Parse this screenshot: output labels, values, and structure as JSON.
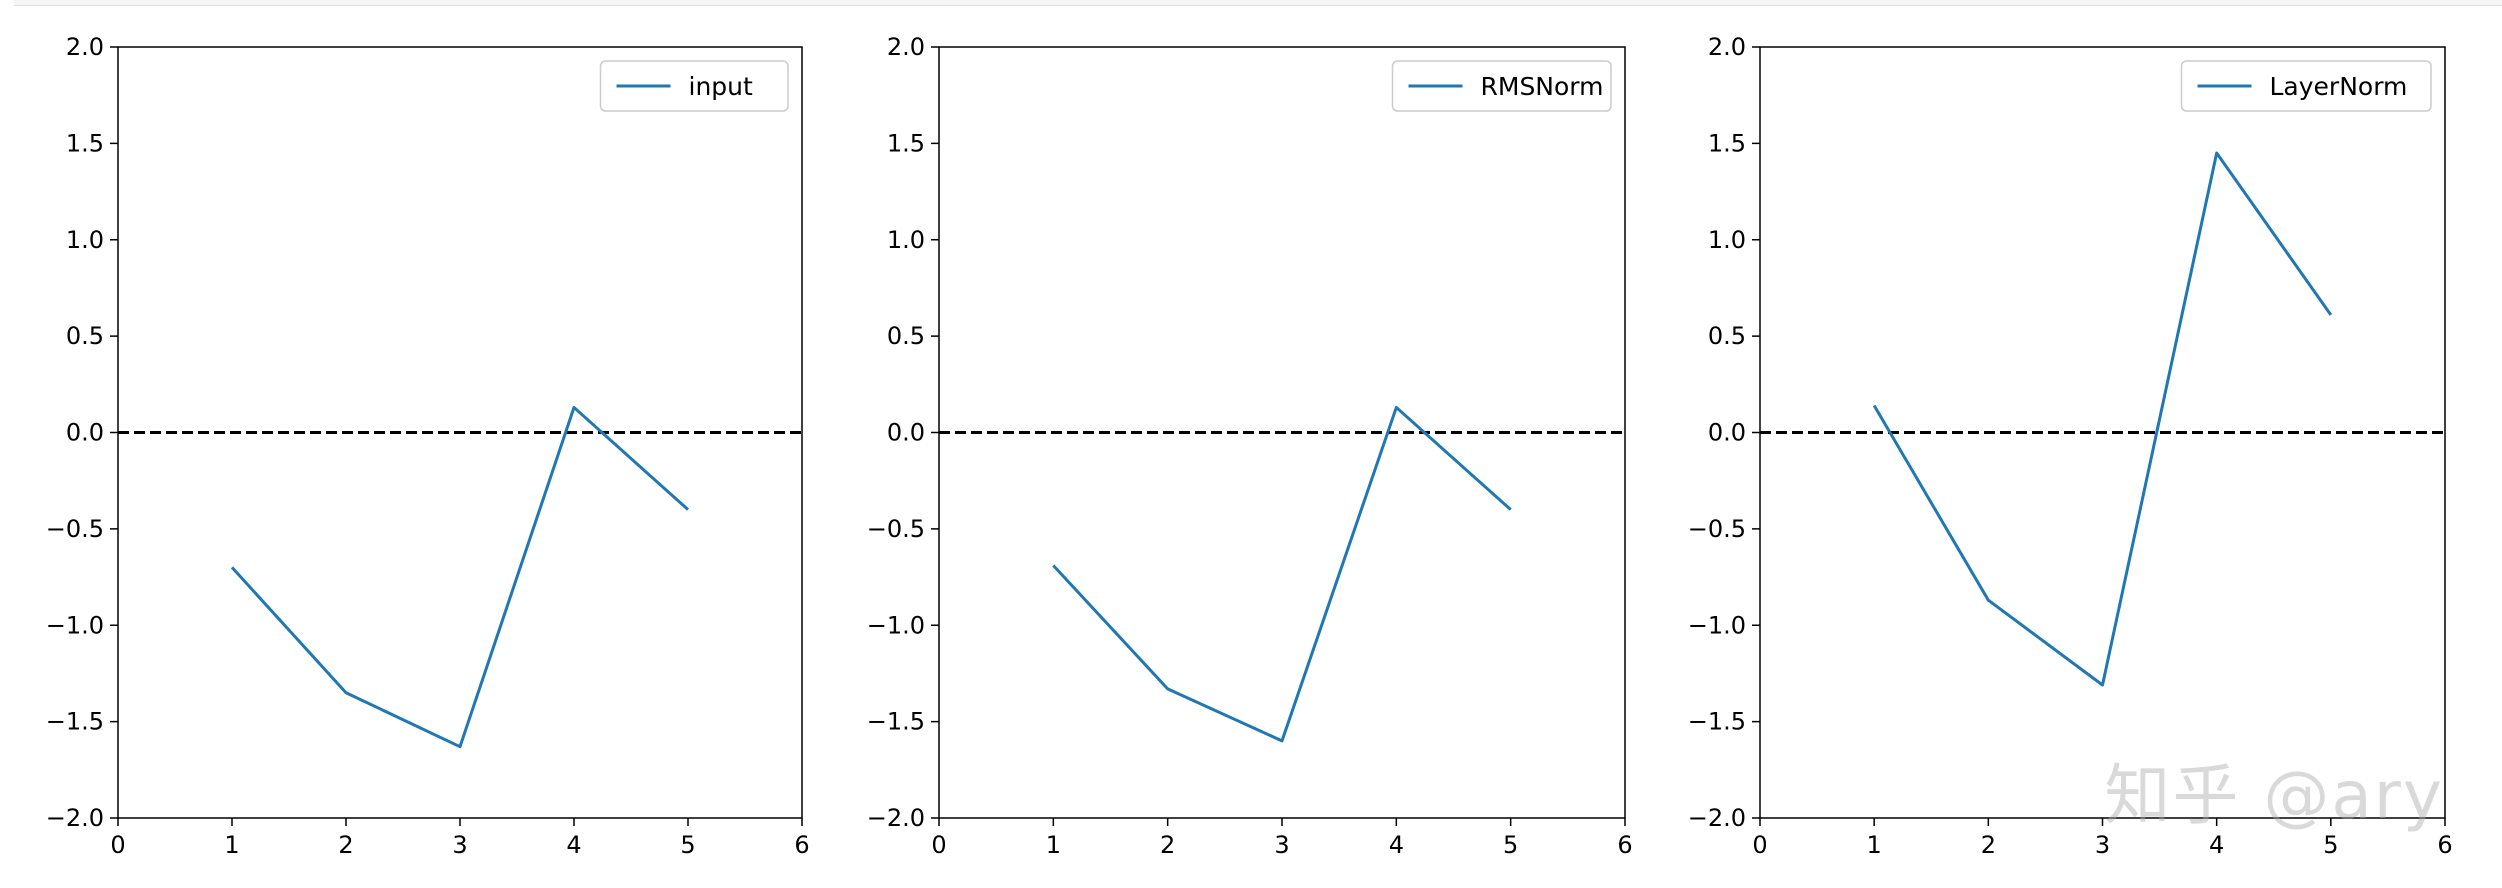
{
  "watermark": "知乎 @ary",
  "chart_data": [
    {
      "type": "line",
      "x": [
        1,
        2,
        3,
        4,
        5
      ],
      "series": [
        {
          "name": "input",
          "values": [
            -0.7,
            -1.35,
            -1.63,
            0.13,
            -0.4
          ]
        }
      ],
      "reference_line": {
        "y": 0.0,
        "style": "dashed",
        "color": "#000000"
      },
      "xlim": [
        0,
        6
      ],
      "ylim": [
        -2.0,
        2.0
      ],
      "xticks": [
        "0",
        "1",
        "2",
        "3",
        "4",
        "5",
        "6"
      ],
      "yticks": [
        "2.0",
        "1.5",
        "1.0",
        "0.5",
        "0.0",
        "−0.5",
        "−1.0",
        "−1.5",
        "−2.0"
      ],
      "legend": "top-right",
      "color": "#1f77b4"
    },
    {
      "type": "line",
      "x": [
        1,
        2,
        3,
        4,
        5
      ],
      "series": [
        {
          "name": "RMSNorm",
          "values": [
            -0.69,
            -1.33,
            -1.6,
            0.13,
            -0.4
          ]
        }
      ],
      "reference_line": {
        "y": 0.0,
        "style": "dashed",
        "color": "#000000"
      },
      "xlim": [
        0,
        6
      ],
      "ylim": [
        -2.0,
        2.0
      ],
      "xticks": [
        "0",
        "1",
        "2",
        "3",
        "4",
        "5",
        "6"
      ],
      "yticks": [
        "2.0",
        "1.5",
        "1.0",
        "0.5",
        "0.0",
        "−0.5",
        "−1.0",
        "−1.5",
        "−2.0"
      ],
      "legend": "top-right",
      "color": "#1f77b4"
    },
    {
      "type": "line",
      "x": [
        1,
        2,
        3,
        4,
        5
      ],
      "series": [
        {
          "name": "LayerNorm",
          "values": [
            0.14,
            -0.87,
            -1.31,
            1.45,
            0.61
          ]
        }
      ],
      "reference_line": {
        "y": 0.0,
        "style": "dashed",
        "color": "#000000"
      },
      "xlim": [
        0,
        6
      ],
      "ylim": [
        -2.0,
        2.0
      ],
      "xticks": [
        "0",
        "1",
        "2",
        "3",
        "4",
        "5",
        "6"
      ],
      "yticks": [
        "2.0",
        "1.5",
        "1.0",
        "0.5",
        "0.0",
        "−0.5",
        "−1.0",
        "−1.5",
        "−2.0"
      ],
      "legend": "top-right",
      "color": "#1f77b4"
    }
  ]
}
